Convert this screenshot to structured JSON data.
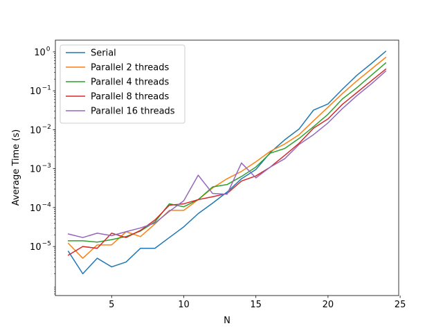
{
  "chart_data": {
    "type": "line",
    "title": "",
    "xlabel": "N",
    "ylabel": "Average Time (s)",
    "yscale": "log",
    "xlim": [
      1.1,
      24.9
    ],
    "ylim": [
      5.5e-07,
      2.0
    ],
    "grid": false,
    "legend_position": "top-left",
    "x": [
      2,
      3,
      4,
      5,
      6,
      7,
      8,
      9,
      10,
      11,
      12,
      13,
      14,
      15,
      16,
      17,
      18,
      19,
      20,
      21,
      22,
      23,
      24
    ],
    "x_ticks": [
      {
        "value": 5,
        "label": "5"
      },
      {
        "value": 10,
        "label": "10"
      },
      {
        "value": 15,
        "label": "15"
      },
      {
        "value": 20,
        "label": "20"
      },
      {
        "value": 25,
        "label": "25"
      }
    ],
    "y_ticks": [
      {
        "value": 1e-05,
        "base": "10",
        "exp": "−5"
      },
      {
        "value": 0.0001,
        "base": "10",
        "exp": "−4"
      },
      {
        "value": 0.001,
        "base": "10",
        "exp": "−3"
      },
      {
        "value": 0.01,
        "base": "10",
        "exp": "−2"
      },
      {
        "value": 0.1,
        "base": "10",
        "exp": "−1"
      },
      {
        "value": 1,
        "base": "10",
        "exp": "0"
      }
    ],
    "series": [
      {
        "name": "Serial",
        "color": "#1f77b4",
        "values": [
          7.5e-06,
          2e-06,
          5e-06,
          3e-06,
          4e-06,
          9e-06,
          9e-06,
          1.7e-05,
          3.2e-05,
          7e-05,
          0.00013,
          0.00025,
          0.00055,
          0.00095,
          0.0026,
          0.0055,
          0.0105,
          0.032,
          0.046,
          0.11,
          0.25,
          0.5,
          1.03
        ]
      },
      {
        "name": "Parallel 2 threads",
        "color": "#ff7f0e",
        "values": [
          1.2e-05,
          5e-06,
          1.1e-05,
          1.1e-05,
          2.4e-05,
          1.8e-05,
          3.8e-05,
          8.5e-05,
          8.5e-05,
          0.00016,
          0.00032,
          0.00055,
          0.00085,
          0.0015,
          0.0028,
          0.0043,
          0.0075,
          0.017,
          0.038,
          0.085,
          0.18,
          0.36,
          0.72
        ]
      },
      {
        "name": "Parallel 4 threads",
        "color": "#2ca02c",
        "values": [
          1.4e-05,
          1.4e-05,
          1.3e-05,
          1.5e-05,
          1.8e-05,
          2.5e-05,
          4.3e-05,
          0.000125,
          0.000105,
          0.00016,
          0.00034,
          0.00039,
          0.00063,
          0.0011,
          0.0025,
          0.0033,
          0.006,
          0.012,
          0.025,
          0.062,
          0.12,
          0.25,
          0.52
        ]
      },
      {
        "name": "Parallel 8 threads",
        "color": "#d62728",
        "values": [
          6e-06,
          1e-05,
          9e-06,
          2.2e-05,
          1.7e-05,
          2.6e-05,
          4.8e-05,
          0.000115,
          0.000125,
          0.00016,
          0.00019,
          0.00023,
          0.00048,
          0.00065,
          0.0011,
          0.0022,
          0.0045,
          0.011,
          0.019,
          0.045,
          0.09,
          0.18,
          0.36
        ]
      },
      {
        "name": "Parallel 16 threads",
        "color": "#9467bd",
        "values": [
          2.1e-05,
          1.7e-05,
          2.2e-05,
          1.9e-05,
          2.4e-05,
          3e-05,
          4e-05,
          8e-05,
          0.00015,
          0.00068,
          0.00023,
          0.00022,
          0.0014,
          0.00058,
          0.0011,
          0.0018,
          0.0042,
          0.0075,
          0.015,
          0.035,
          0.075,
          0.15,
          0.32
        ]
      }
    ]
  }
}
